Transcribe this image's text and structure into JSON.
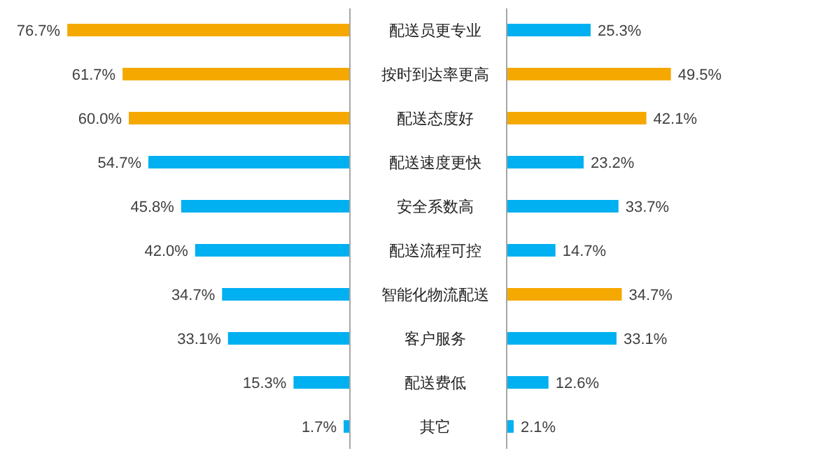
{
  "chart_data": [
    {
      "type": "bar",
      "orientation": "horizontal",
      "categories": [
        "配送员更专业",
        "按时到达率更高",
        "配送态度好",
        "配送速度更快",
        "安全系数高",
        "配送流程可控",
        "智能化物流配送",
        "客户服务",
        "配送费低",
        "其它"
      ],
      "values": [
        76.7,
        61.7,
        60.0,
        54.7,
        45.8,
        42.0,
        34.7,
        33.1,
        15.3,
        1.7
      ],
      "colors": [
        "#f5a800",
        "#f5a800",
        "#f5a800",
        "#00b0f0",
        "#00b0f0",
        "#00b0f0",
        "#00b0f0",
        "#00b0f0",
        "#00b0f0",
        "#00b0f0"
      ],
      "value_labels": [
        "76.7%",
        "61.7%",
        "60.0%",
        "54.7%",
        "45.8%",
        "42.0%",
        "34.7%",
        "33.1%",
        "15.3%",
        "1.7%"
      ],
      "tick_labels": "y"
    },
    {
      "type": "bar",
      "orientation": "horizontal",
      "categories": [
        null,
        null,
        null,
        null,
        null,
        null,
        null,
        null,
        null,
        null
      ],
      "values": [
        25.3,
        49.5,
        42.1,
        23.2,
        33.7,
        14.7,
        34.7,
        33.1,
        12.6,
        2.1
      ],
      "colors": [
        "#00b0f0",
        "#f5a800",
        "#f5a800",
        "#00b0f0",
        "#00b0f0",
        "#00b0f0",
        "#f5a800",
        "#00b0f0",
        "#00b0f0",
        "#00b0f0"
      ],
      "value_labels": [
        "25.3%",
        "49.5%",
        "42.1%",
        "23.2%",
        "33.7%",
        "14.7%",
        "34.7%",
        "33.1%",
        "12.6%",
        "2.1%"
      ],
      "tick_labels": false
    }
  ]
}
